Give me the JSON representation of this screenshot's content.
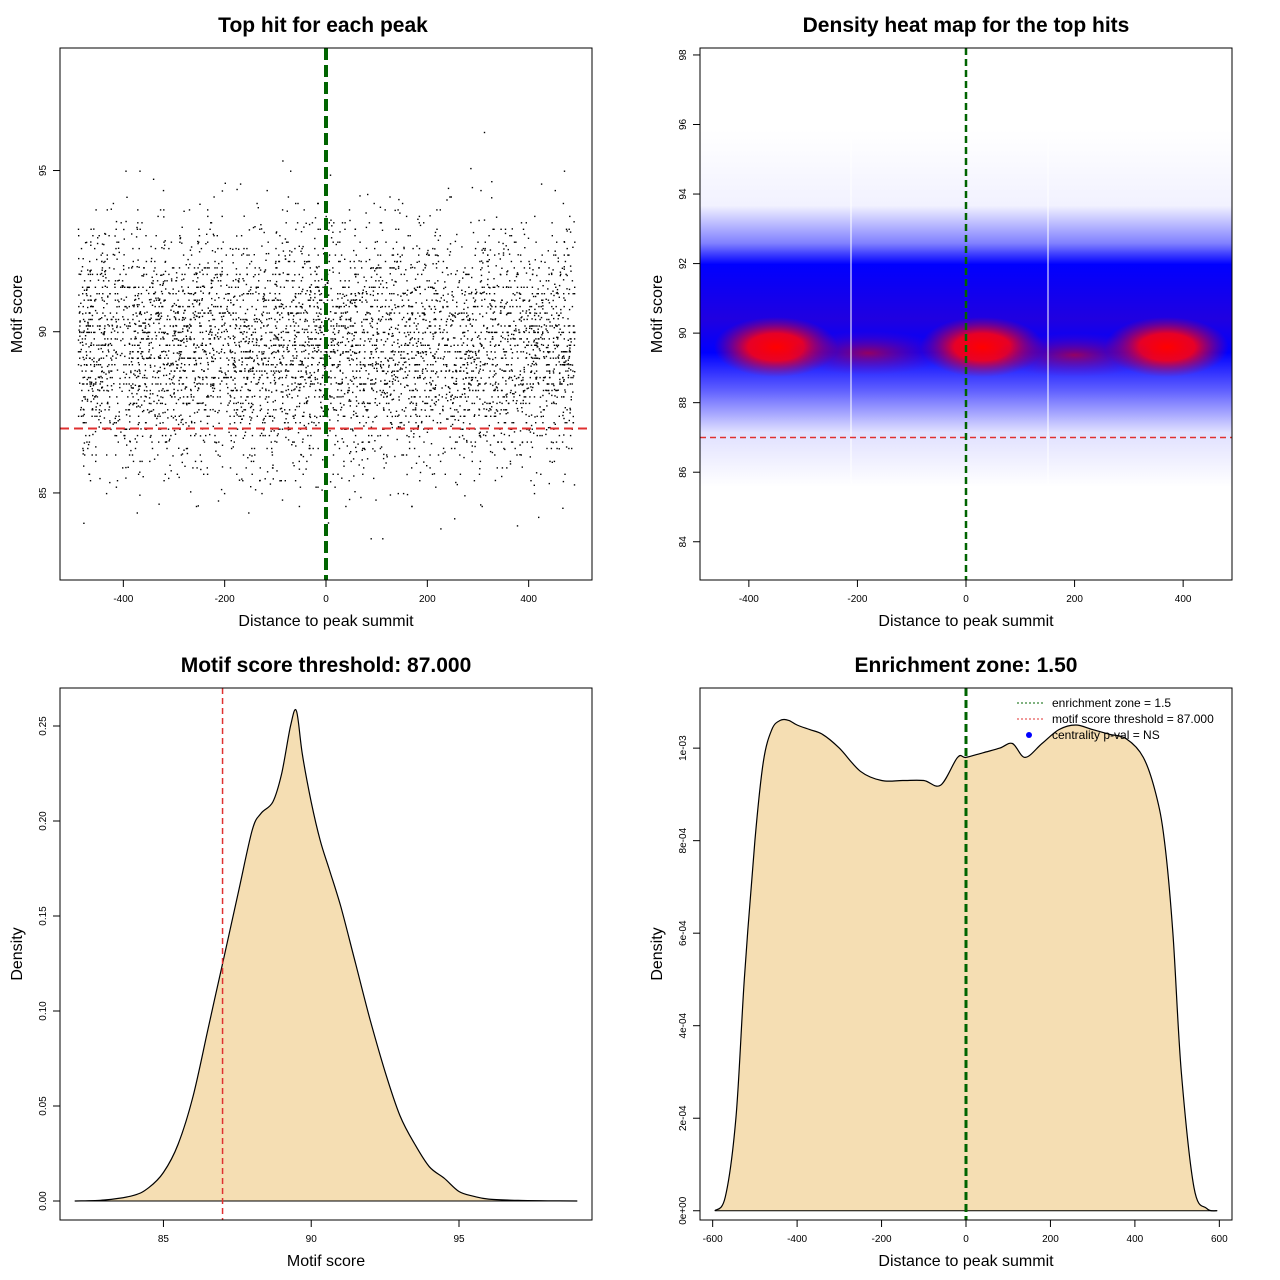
{
  "colors": {
    "threshold": "#e03030",
    "center_line": "#006400",
    "density_fill": "#f5deb3",
    "heat_low": "#ffffff",
    "heat_mid": "#0000ff",
    "heat_high": "#ff0000",
    "points": "#000000",
    "legend_point": "#0000ff"
  },
  "chart_data": [
    {
      "type": "scatter",
      "title": "Top hit for each peak",
      "xlabel": "Distance to peak summit",
      "ylabel": "Motif score",
      "xlim": [
        -525,
        525
      ],
      "ylim": [
        82.3,
        98.8
      ],
      "xticks": [
        -400,
        -200,
        0,
        200,
        400
      ],
      "yticks": [
        85,
        90,
        95
      ],
      "x_range_points": [
        -490,
        490
      ],
      "y_range_points": [
        83.0,
        98.1
      ],
      "n_points_approx": 10000,
      "threshold_y": 87.0,
      "center_x": 0
    },
    {
      "type": "heatmap",
      "title": "Density heat map for the top hits",
      "xlabel": "Distance to peak summit",
      "ylabel": "Motif score",
      "xlim": [
        -490,
        490
      ],
      "ylim": [
        82.9,
        98.2
      ],
      "xticks": [
        -400,
        -200,
        0,
        200,
        400
      ],
      "yticks": [
        84,
        86,
        88,
        90,
        92,
        94,
        96,
        98
      ],
      "density_peak_y": 89.6,
      "hotspots_x": [
        -350,
        30,
        370
      ],
      "threshold_y": 87.0,
      "center_x": 0
    },
    {
      "type": "area",
      "title": "Motif score threshold: 87.000",
      "xlabel": "Motif score",
      "ylabel": "Density",
      "xlim": [
        81.5,
        99.5
      ],
      "ylim": [
        -0.01,
        0.27
      ],
      "xticks": [
        85,
        90,
        95
      ],
      "yticks": [
        0.0,
        0.05,
        0.1,
        0.15,
        0.2,
        0.25
      ],
      "ytick_labels": [
        "0.00",
        "0.05",
        "0.10",
        "0.15",
        "0.20",
        "0.25"
      ],
      "x": [
        82.0,
        83.0,
        84.0,
        84.5,
        85.0,
        85.5,
        86.0,
        86.5,
        87.0,
        87.5,
        88.0,
        88.3,
        88.7,
        89.0,
        89.3,
        89.5,
        89.7,
        90.0,
        90.3,
        90.6,
        91.0,
        91.5,
        92.0,
        92.5,
        93.0,
        93.5,
        94.0,
        94.5,
        95.0,
        95.5,
        96.0,
        97.0,
        98.0,
        99.0
      ],
      "y": [
        0.0,
        0.0005,
        0.003,
        0.007,
        0.015,
        0.03,
        0.055,
        0.09,
        0.125,
        0.16,
        0.195,
        0.204,
        0.21,
        0.225,
        0.25,
        0.258,
        0.235,
        0.21,
        0.19,
        0.175,
        0.155,
        0.125,
        0.095,
        0.068,
        0.045,
        0.03,
        0.018,
        0.012,
        0.005,
        0.0025,
        0.001,
        0.0003,
        0.0001,
        0.0
      ],
      "threshold_x": 87.0
    },
    {
      "type": "area",
      "title": "Enrichment zone: 1.50",
      "xlabel": "Distance to peak summit",
      "ylabel": "Density",
      "xlim": [
        -630,
        630
      ],
      "ylim": [
        -2e-05,
        0.00113
      ],
      "xticks": [
        -600,
        -400,
        -200,
        0,
        200,
        400,
        600
      ],
      "yticks": [
        0,
        0.0002,
        0.0004,
        0.0006,
        0.0008,
        0.001
      ],
      "ytick_labels": [
        "0e+00",
        "2e-04",
        "4e-04",
        "6e-04",
        "8e-04",
        "1e-03"
      ],
      "x": [
        -595,
        -570,
        -545,
        -525,
        -500,
        -480,
        -460,
        -440,
        -420,
        -400,
        -370,
        -340,
        -300,
        -250,
        -200,
        -150,
        -100,
        -60,
        -20,
        0,
        40,
        80,
        110,
        140,
        180,
        220,
        260,
        300,
        340,
        380,
        420,
        450,
        470,
        490,
        510,
        540,
        570,
        595
      ],
      "y": [
        0.0,
        3e-05,
        0.0002,
        0.0005,
        0.0008,
        0.00097,
        0.00104,
        0.00106,
        0.00106,
        0.00105,
        0.00104,
        0.00103,
        0.001,
        0.00095,
        0.00093,
        0.00093,
        0.00093,
        0.00092,
        0.00098,
        0.00098,
        0.00099,
        0.001,
        0.00101,
        0.00098,
        0.00101,
        0.00104,
        0.00105,
        0.00104,
        0.00103,
        0.00102,
        0.00098,
        0.0009,
        0.0008,
        0.0006,
        0.0003,
        5e-05,
        5e-06,
        0.0
      ],
      "center_x": 0,
      "legend": [
        {
          "label": "enrichment zone = 1.5",
          "style": "dotted-green-line"
        },
        {
          "label": "motif score threshold = 87.000",
          "style": "dotted-red-line"
        },
        {
          "label": "centrality p-val = NS",
          "style": "blue-point"
        }
      ],
      "legend_position": "top-right"
    }
  ]
}
